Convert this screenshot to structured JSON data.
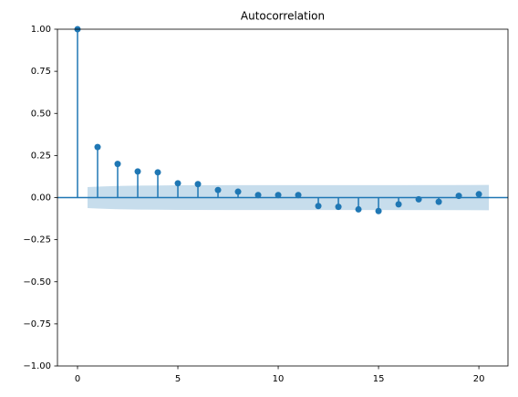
{
  "chart_data": {
    "type": "stem",
    "title": "Autocorrelation",
    "x": [
      0,
      1,
      2,
      3,
      4,
      5,
      6,
      7,
      8,
      9,
      10,
      11,
      12,
      13,
      14,
      15,
      16,
      17,
      18,
      19,
      20
    ],
    "values": [
      1.0,
      0.3,
      0.2,
      0.155,
      0.15,
      0.085,
      0.08,
      0.045,
      0.035,
      0.015,
      0.015,
      0.015,
      -0.05,
      -0.055,
      -0.07,
      -0.08,
      -0.04,
      -0.01,
      -0.025,
      0.01,
      0.02
    ],
    "color": "#1f77b4",
    "band": {
      "x": [
        0.5,
        1,
        2,
        3,
        4,
        5,
        10,
        15,
        20.5
      ],
      "upper": [
        0.062,
        0.065,
        0.069,
        0.071,
        0.072,
        0.073,
        0.074,
        0.074,
        0.075
      ],
      "lower": [
        -0.062,
        -0.065,
        -0.069,
        -0.071,
        -0.072,
        -0.073,
        -0.074,
        -0.074,
        -0.075
      ],
      "color": "#1f77b4"
    },
    "xlim": [
      -1,
      21.45
    ],
    "xticks": [
      0,
      5,
      10,
      15,
      20
    ],
    "ylim": [
      -1,
      1
    ],
    "yticks": [
      {
        "value": -1,
        "label": "−1.00"
      },
      {
        "value": -0.75,
        "label": "−0.75"
      },
      {
        "value": -0.5,
        "label": "−0.50"
      },
      {
        "value": -0.25,
        "label": "−0.25"
      },
      {
        "value": 0,
        "label": "0.00"
      },
      {
        "value": 0.25,
        "label": "0.25"
      },
      {
        "value": 0.5,
        "label": "0.50"
      },
      {
        "value": 0.75,
        "label": "0.75"
      },
      {
        "value": 1,
        "label": "1.00"
      }
    ]
  }
}
